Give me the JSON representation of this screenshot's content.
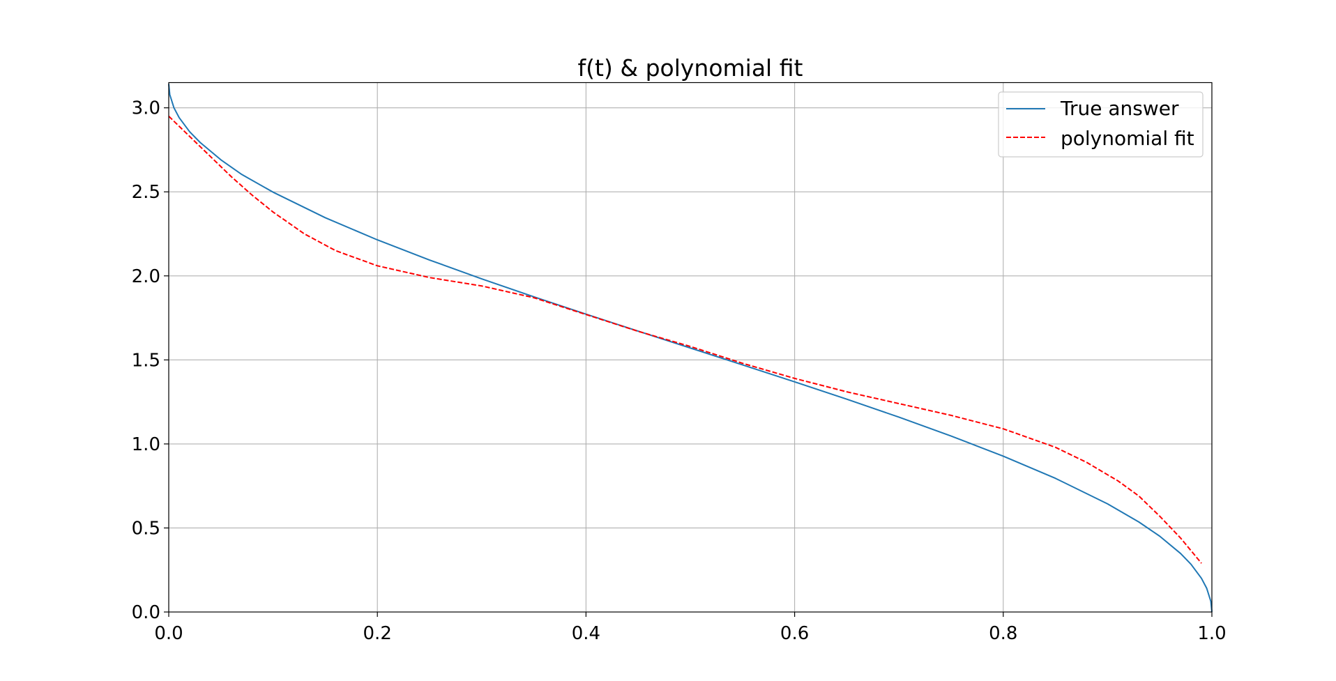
{
  "chart_data": {
    "type": "line",
    "title": "f(t) & polynomial fit",
    "xlabel": "",
    "ylabel": "",
    "xlim": [
      0.0,
      1.0
    ],
    "ylim": [
      0.0,
      3.15
    ],
    "grid": true,
    "legend_position": "top-right",
    "xticks": [
      0.0,
      0.2,
      0.4,
      0.6,
      0.8,
      1.0
    ],
    "xtick_labels": [
      "0.0",
      "0.2",
      "0.4",
      "0.6",
      "0.8",
      "1.0"
    ],
    "yticks": [
      0.0,
      0.5,
      1.0,
      1.5,
      2.0,
      2.5,
      3.0
    ],
    "ytick_labels": [
      "0.0",
      "0.5",
      "1.0",
      "1.5",
      "2.0",
      "2.5",
      "3.0"
    ],
    "series": [
      {
        "name": "True answer",
        "color": "#1f77b4",
        "style": "solid",
        "x": [
          0.0,
          0.001,
          0.005,
          0.01,
          0.02,
          0.03,
          0.05,
          0.07,
          0.1,
          0.15,
          0.2,
          0.25,
          0.3,
          0.35,
          0.4,
          0.45,
          0.5,
          0.55,
          0.6,
          0.65,
          0.7,
          0.75,
          0.8,
          0.85,
          0.9,
          0.93,
          0.95,
          0.97,
          0.98,
          0.99,
          0.995,
          0.999,
          1.0
        ],
        "y": [
          3.1416,
          3.0784,
          3.0,
          2.9413,
          2.8578,
          2.7944,
          2.6906,
          2.6034,
          2.4981,
          2.3462,
          2.2143,
          2.0944,
          1.9823,
          1.8755,
          1.7722,
          1.671,
          1.5708,
          1.4706,
          1.3694,
          1.2661,
          1.1593,
          1.0472,
          0.9273,
          0.7954,
          0.6435,
          0.5355,
          0.451,
          0.3482,
          0.2838,
          0.2003,
          0.1416,
          0.0632,
          0.0
        ]
      },
      {
        "name": "polynomial fit",
        "color": "#ff0000",
        "style": "dashed",
        "x": [
          0.0,
          0.02,
          0.04,
          0.06,
          0.08,
          0.1,
          0.13,
          0.16,
          0.2,
          0.25,
          0.3,
          0.35,
          0.4,
          0.45,
          0.5,
          0.55,
          0.6,
          0.65,
          0.7,
          0.75,
          0.8,
          0.85,
          0.88,
          0.91,
          0.93,
          0.95,
          0.97,
          0.99
        ],
        "y": [
          2.95,
          2.83,
          2.71,
          2.59,
          2.48,
          2.38,
          2.25,
          2.15,
          2.06,
          1.99,
          1.94,
          1.87,
          1.77,
          1.67,
          1.58,
          1.48,
          1.39,
          1.31,
          1.24,
          1.17,
          1.09,
          0.98,
          0.89,
          0.78,
          0.69,
          0.57,
          0.44,
          0.29
        ]
      }
    ]
  }
}
